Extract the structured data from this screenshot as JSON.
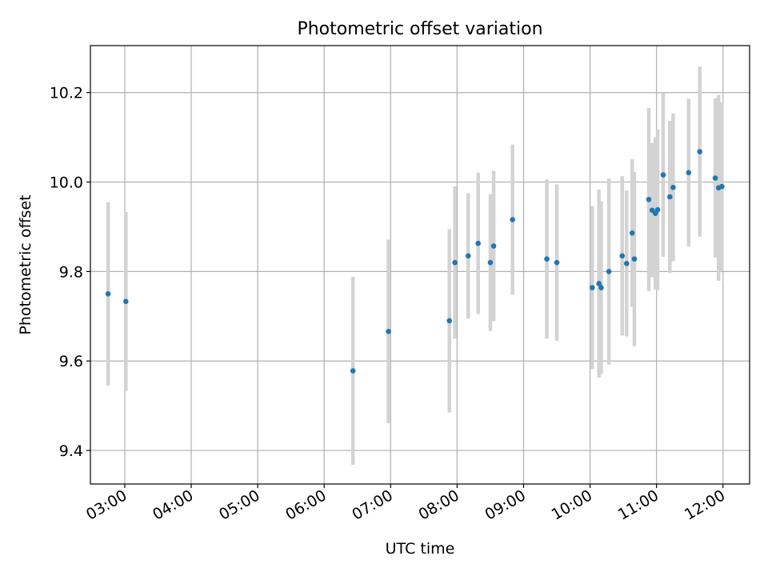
{
  "chart_data": {
    "type": "scatter",
    "title": "Photometric offset variation",
    "xlabel": "UTC time",
    "ylabel": "Photometric offset",
    "x_tick_labels": [
      "03:00",
      "04:00",
      "05:00",
      "06:00",
      "07:00",
      "08:00",
      "09:00",
      "10:00",
      "11:00",
      "12:00"
    ],
    "y_tick_labels": [
      "9.4",
      "9.6",
      "9.8",
      "10.0",
      "10.2"
    ],
    "xlim": [
      "02:29",
      "12:24"
    ],
    "ylim": [
      9.325,
      10.305
    ],
    "grid": true,
    "point_color": "#1f77b4",
    "errorbar_color": "#d3d3d3",
    "points": [
      {
        "x": "02:45",
        "y": 9.75,
        "yerr": 0.205
      },
      {
        "x": "03:01",
        "y": 9.733,
        "yerr": 0.2
      },
      {
        "x": "06:26",
        "y": 9.578,
        "yerr": 0.21
      },
      {
        "x": "06:58",
        "y": 9.666,
        "yerr": 0.205
      },
      {
        "x": "07:53",
        "y": 9.69,
        "yerr": 0.205
      },
      {
        "x": "07:58",
        "y": 9.82,
        "yerr": 0.17
      },
      {
        "x": "08:10",
        "y": 9.835,
        "yerr": 0.14
      },
      {
        "x": "08:19",
        "y": 9.863,
        "yerr": 0.158
      },
      {
        "x": "08:30",
        "y": 9.82,
        "yerr": 0.153
      },
      {
        "x": "08:33",
        "y": 9.857,
        "yerr": 0.168
      },
      {
        "x": "08:50",
        "y": 9.916,
        "yerr": 0.168
      },
      {
        "x": "09:21",
        "y": 9.828,
        "yerr": 0.178
      },
      {
        "x": "09:30",
        "y": 9.82,
        "yerr": 0.175
      },
      {
        "x": "10:02",
        "y": 9.764,
        "yerr": 0.182
      },
      {
        "x": "10:08",
        "y": 9.773,
        "yerr": 0.21
      },
      {
        "x": "10:10",
        "y": 9.764,
        "yerr": 0.193
      },
      {
        "x": "10:17",
        "y": 9.8,
        "yerr": 0.208
      },
      {
        "x": "10:29",
        "y": 9.835,
        "yerr": 0.178
      },
      {
        "x": "10:33",
        "y": 9.818,
        "yerr": 0.163
      },
      {
        "x": "10:38",
        "y": 9.886,
        "yerr": 0.165
      },
      {
        "x": "10:40",
        "y": 9.828,
        "yerr": 0.195
      },
      {
        "x": "10:53",
        "y": 9.961,
        "yerr": 0.205
      },
      {
        "x": "10:56",
        "y": 9.937,
        "yerr": 0.15
      },
      {
        "x": "10:59",
        "y": 9.93,
        "yerr": 0.17
      },
      {
        "x": "11:01",
        "y": 9.938,
        "yerr": 0.18
      },
      {
        "x": "11:06",
        "y": 10.016,
        "yerr": 0.183
      },
      {
        "x": "11:12",
        "y": 9.967,
        "yerr": 0.17
      },
      {
        "x": "11:15",
        "y": 9.988,
        "yerr": 0.165
      },
      {
        "x": "11:29",
        "y": 10.021,
        "yerr": 0.165
      },
      {
        "x": "11:39",
        "y": 10.068,
        "yerr": 0.19
      },
      {
        "x": "11:53",
        "y": 10.009,
        "yerr": 0.178
      },
      {
        "x": "11:56",
        "y": 9.987,
        "yerr": 0.208
      },
      {
        "x": "11:59",
        "y": 9.99,
        "yerr": 0.188
      }
    ]
  }
}
